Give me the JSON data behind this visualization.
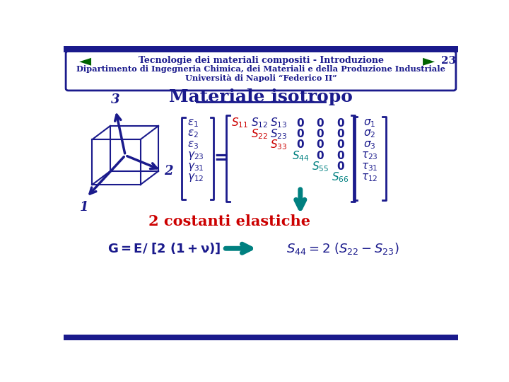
{
  "bg_color": "#ffffff",
  "border_color": "#1a1a8c",
  "header_text1": "Dipartimento di Ingegneria Chimica, dei Materiali e della Produzione Industriale",
  "header_text2": "Università di Napoli “Federico II”",
  "title": "Materiale isotropo",
  "title_color": "#1a1a8c",
  "cube_color": "#1a1a8c",
  "axes_color": "#1a1a8c",
  "red_color": "#cc0000",
  "teal_color": "#20b2aa",
  "dark_blue": "#1a1a8c",
  "footer_text": "Tecnologie dei materiali compositi - Introduzione",
  "page_num": "23",
  "teal_btn_color": "#20b2aa",
  "bottom_bar_color": "#1a1a8c"
}
